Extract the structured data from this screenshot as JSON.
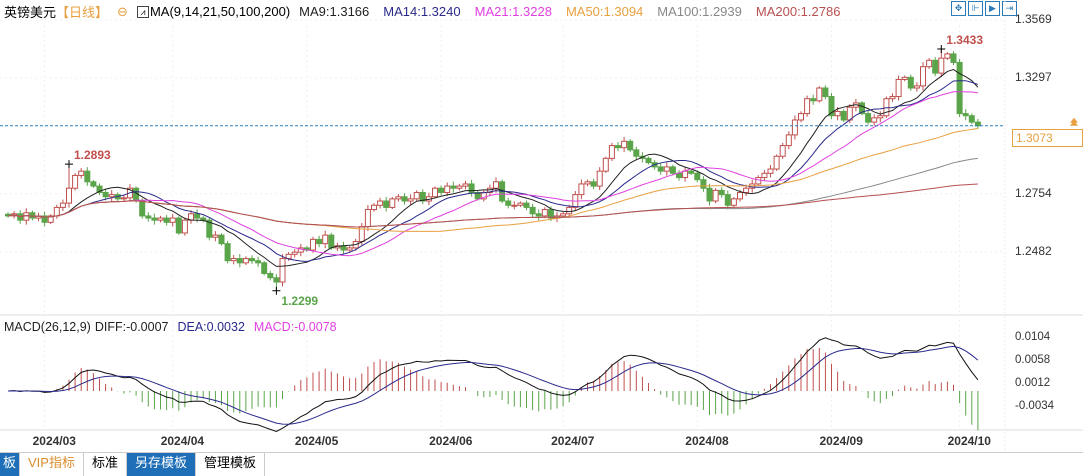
{
  "header": {
    "symbol": "英镑美元",
    "period": "【日线】",
    "ma_label": "MA(9,14,21,50,100,200)",
    "ma_values": [
      {
        "label": "MA9:1.3166",
        "color": "#222222"
      },
      {
        "label": "MA14:1.3240",
        "color": "#2a2a8c"
      },
      {
        "label": "MA21:1.3228",
        "color": "#e040e0"
      },
      {
        "label": "MA50:1.3094",
        "color": "#e8a040"
      },
      {
        "label": "MA100:1.2939",
        "color": "#888888"
      },
      {
        "label": "MA200:1.2786",
        "color": "#b85050"
      }
    ]
  },
  "toolbar": {
    "icons": [
      "crosshair-icon",
      "zoom-range-icon",
      "play-forward-icon",
      "jump-end-icon"
    ]
  },
  "macd_header": {
    "label": "MACD(26,12,9)",
    "diff": "DIFF:-0.0007",
    "dea": "DEA:0.0032",
    "macd": "MACD:-0.0078"
  },
  "bottom_tabs": [
    {
      "label": "板",
      "style": "blue"
    },
    {
      "label": "VIP指标",
      "style": "vip"
    },
    {
      "label": "标准",
      "style": "plain"
    },
    {
      "label": "另存模板",
      "style": "blue"
    },
    {
      "label": "管理模板",
      "style": "plain"
    }
  ],
  "chart_data": {
    "type": "candlestick",
    "price_axis_ticks": [
      "1.3569",
      "1.3297",
      "1.2754",
      "1.2482"
    ],
    "macd_axis_ticks": [
      "0.0104",
      "0.0058",
      "0.0012",
      "-0.0034"
    ],
    "x_tick_labels": [
      "2024/03",
      "2024/04",
      "2024/05",
      "2024/06",
      "2024/07",
      "2024/08",
      "2024/09",
      "2024/10"
    ],
    "x_tick_index": [
      6,
      27,
      49,
      71,
      91,
      113,
      135,
      156
    ],
    "last_price": "1.3073",
    "annotations": [
      {
        "text": "1.2893",
        "index": 10,
        "price": 1.2893,
        "kind": "high",
        "color": "#c0504d"
      },
      {
        "text": "1.2299",
        "index": 44,
        "price": 1.2299,
        "kind": "low",
        "color": "#5aa54a"
      },
      {
        "text": "1.3433",
        "index": 153,
        "price": 1.3433,
        "kind": "high",
        "color": "#c0504d"
      }
    ],
    "colors": {
      "up": "#c0504d",
      "down": "#5aa54a",
      "last": "#e8a040"
    },
    "closes": [
      1.265,
      1.266,
      1.263,
      1.2665,
      1.264,
      1.265,
      1.262,
      1.265,
      1.269,
      1.271,
      1.278,
      1.284,
      1.286,
      1.281,
      1.279,
      1.276,
      1.274,
      1.275,
      1.273,
      1.2735,
      1.278,
      1.272,
      1.265,
      1.264,
      1.263,
      1.264,
      1.262,
      1.264,
      1.257,
      1.263,
      1.266,
      1.264,
      1.263,
      1.255,
      1.256,
      1.252,
      1.244,
      1.245,
      1.243,
      1.245,
      1.244,
      1.243,
      1.238,
      1.236,
      1.234,
      1.245,
      1.247,
      1.248,
      1.25,
      1.249,
      1.254,
      1.252,
      1.256,
      1.25,
      1.251,
      1.249,
      1.25,
      1.253,
      1.26,
      1.268,
      1.27,
      1.272,
      1.269,
      1.273,
      1.274,
      1.272,
      1.273,
      1.276,
      1.272,
      1.274,
      1.278,
      1.276,
      1.279,
      1.278,
      1.279,
      1.28,
      1.276,
      1.273,
      1.276,
      1.278,
      1.281,
      1.272,
      1.27,
      1.27,
      1.271,
      1.269,
      1.266,
      1.265,
      1.268,
      1.264,
      1.265,
      1.266,
      1.269,
      1.275,
      1.28,
      1.281,
      1.279,
      1.286,
      1.292,
      1.298,
      1.297,
      1.3,
      1.296,
      1.293,
      1.292,
      1.29,
      1.288,
      1.286,
      1.288,
      1.285,
      1.283,
      1.286,
      1.285,
      1.282,
      1.278,
      1.272,
      1.277,
      1.275,
      1.27,
      1.273,
      1.276,
      1.278,
      1.28,
      1.283,
      1.285,
      1.287,
      1.293,
      1.298,
      1.303,
      1.31,
      1.313,
      1.32,
      1.319,
      1.325,
      1.321,
      1.312,
      1.314,
      1.31,
      1.316,
      1.318,
      1.313,
      1.309,
      1.311,
      1.312,
      1.32,
      1.321,
      1.329,
      1.33,
      1.325,
      1.326,
      1.335,
      1.338,
      1.332,
      1.339,
      1.341,
      1.337,
      1.313,
      1.312,
      1.309,
      1.3073
    ]
  }
}
